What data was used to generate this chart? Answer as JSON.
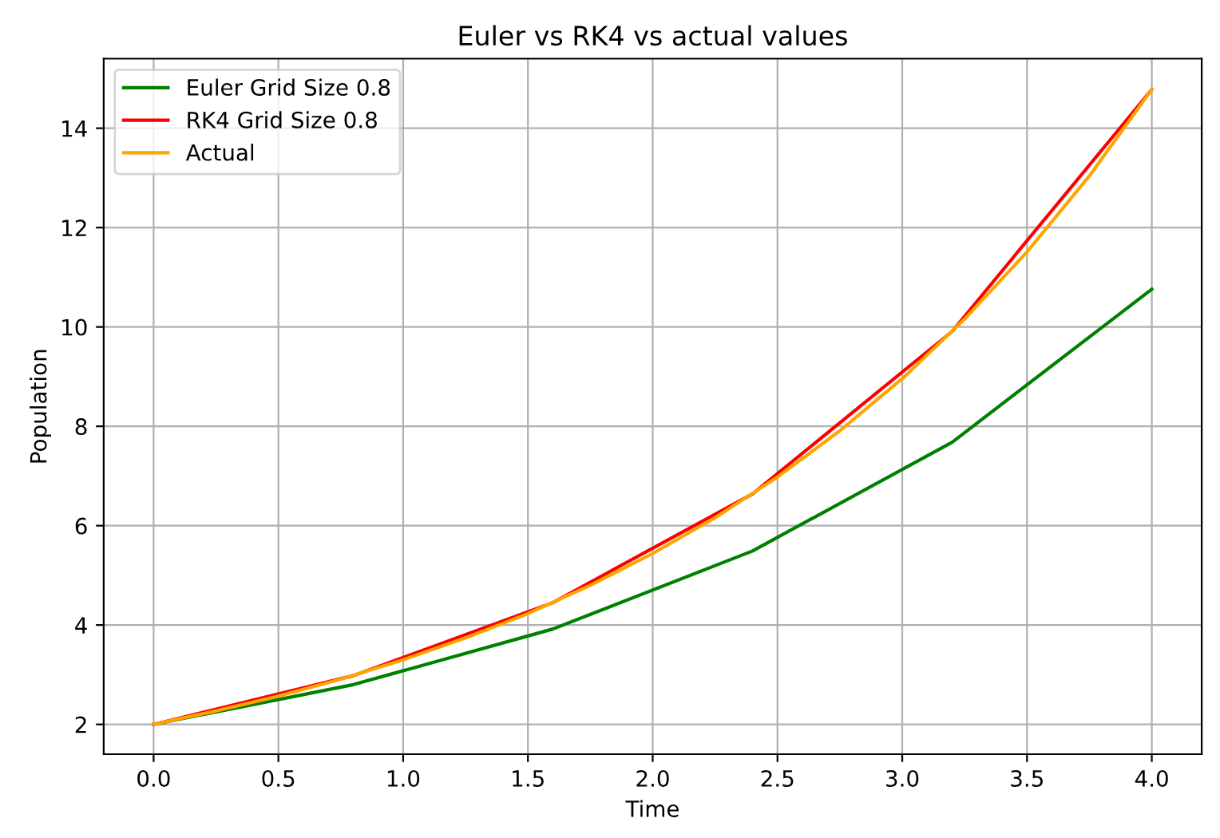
{
  "chart_data": {
    "type": "line",
    "title": "Euler vs RK4 vs actual values",
    "xlabel": "Time",
    "ylabel": "Population",
    "series": [
      {
        "name": "Euler Grid Size 0.8",
        "color": "#008000",
        "x": [
          0,
          0.8,
          1.6,
          2.4,
          3.2,
          4.0
        ],
        "values": [
          2,
          2.8,
          3.92,
          5.49,
          7.68,
          10.76
        ]
      },
      {
        "name": "RK4 Grid Size 0.8",
        "color": "#ff0000",
        "x": [
          0,
          0.8,
          1.6,
          2.4,
          3.2,
          4.0
        ],
        "values": [
          2,
          2.98,
          4.45,
          6.64,
          9.91,
          14.78
        ]
      },
      {
        "name": "Actual",
        "color": "#ffa500",
        "x": [
          0,
          0.25,
          0.5,
          0.75,
          1,
          1.25,
          1.5,
          1.75,
          2,
          2.25,
          2.5,
          2.75,
          3,
          3.25,
          3.5,
          3.75,
          4
        ],
        "values": [
          2,
          2.27,
          2.57,
          2.91,
          3.3,
          3.74,
          4.23,
          4.8,
          5.44,
          6.16,
          6.98,
          7.91,
          8.96,
          10.16,
          11.51,
          13.04,
          14.78
        ]
      }
    ],
    "xlim": [
      -0.2,
      4.2
    ],
    "ylim": [
      1.4,
      15.4
    ],
    "xticks": [
      {
        "value": 0,
        "label": "0.0"
      },
      {
        "value": 0.5,
        "label": "0.5"
      },
      {
        "value": 1,
        "label": "1.0"
      },
      {
        "value": 1.5,
        "label": "1.5"
      },
      {
        "value": 2,
        "label": "2.0"
      },
      {
        "value": 2.5,
        "label": "2.5"
      },
      {
        "value": 3,
        "label": "3.0"
      },
      {
        "value": 3.5,
        "label": "3.5"
      },
      {
        "value": 4,
        "label": "4.0"
      }
    ],
    "yticks": [
      2,
      4,
      6,
      8,
      10,
      12,
      14
    ],
    "grid": true,
    "legend": "top left",
    "marker": "none",
    "line_style": "solid"
  }
}
